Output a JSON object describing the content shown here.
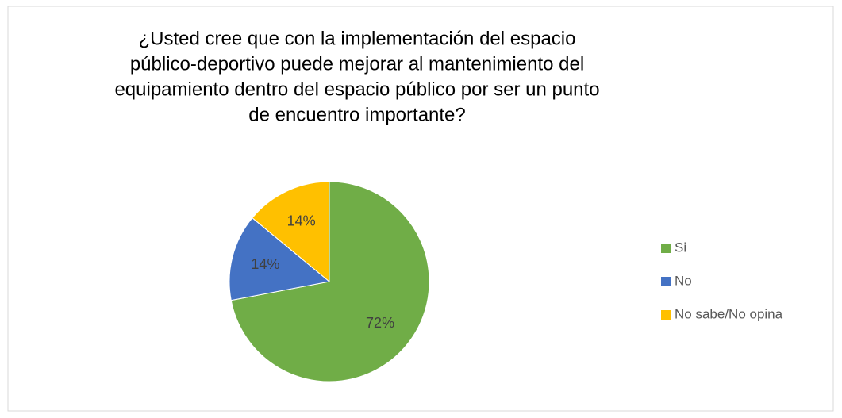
{
  "chart_data": {
    "type": "pie",
    "title": [
      "¿Usted cree que con la implementación del espacio",
      "público-deportivo puede mejorar al mantenimiento del",
      "equipamiento dentro del espacio público por ser un punto",
      "de encuentro importante?"
    ],
    "categories": [
      "Si",
      "No",
      "No sabe/No opina"
    ],
    "values": [
      72,
      14,
      14
    ],
    "value_labels": [
      "72%",
      "14%",
      "14%"
    ],
    "colors": [
      "#70ad47",
      "#4472c4",
      "#ffc000"
    ],
    "legend": "right"
  }
}
